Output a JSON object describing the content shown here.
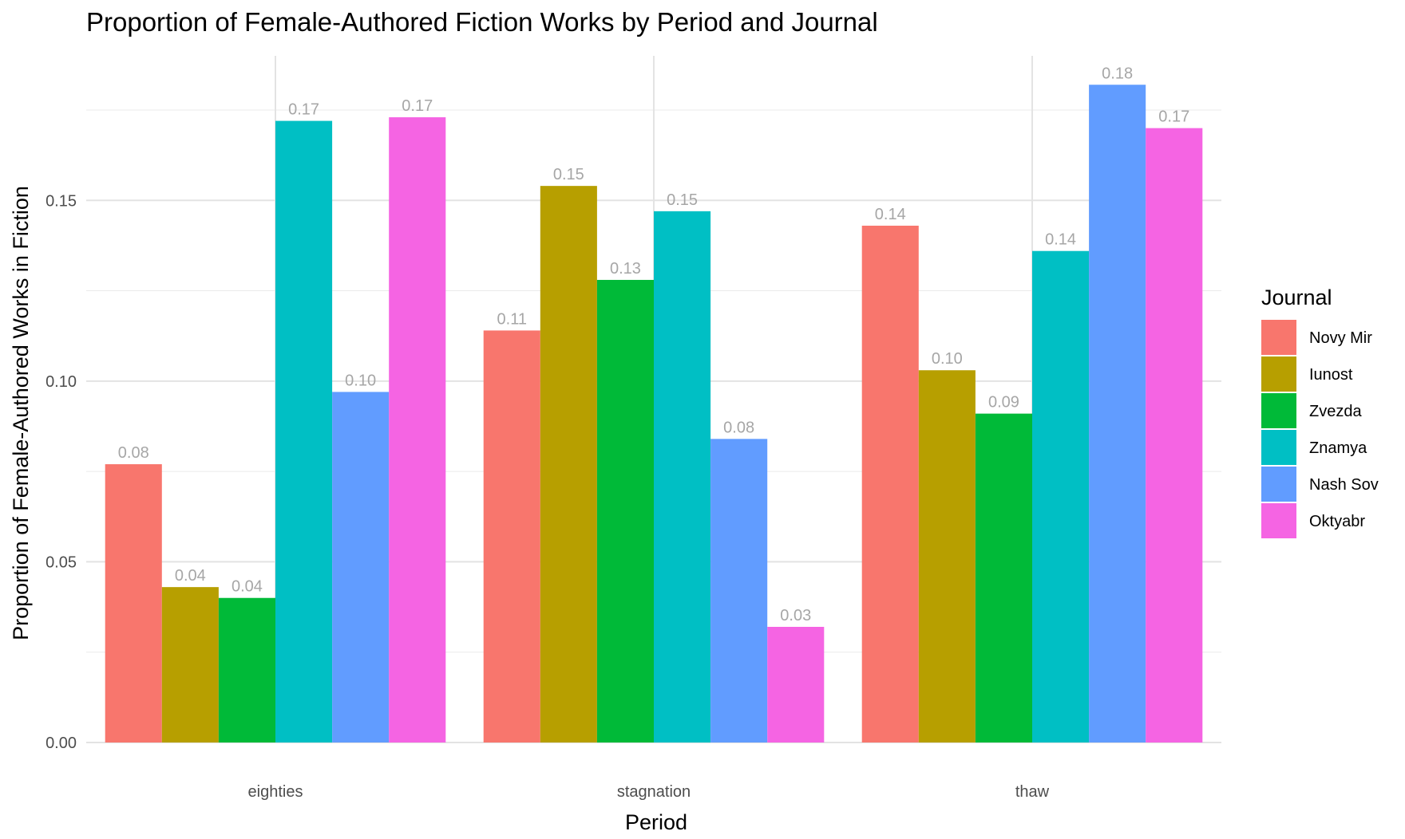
{
  "chart_data": {
    "type": "bar",
    "title": "Proportion of Female-Authored Fiction Works by Period and Journal",
    "xlabel": "Period",
    "ylabel": "Proportion of Female-Authored Works in Fiction",
    "ylim": [
      0,
      0.19
    ],
    "yticks": [
      "0.00",
      "0.05",
      "0.10",
      "0.15"
    ],
    "grid": true,
    "legend_title": "Journal",
    "legend_position": "right",
    "categories": [
      "eighties",
      "stagnation",
      "thaw"
    ],
    "series": [
      {
        "name": "Novy Mir",
        "color": "#F8766D",
        "values": [
          0.077,
          0.114,
          0.143
        ],
        "labels": [
          "0.08",
          "0.11",
          "0.14"
        ]
      },
      {
        "name": "Iunost",
        "color": "#B79F00",
        "values": [
          0.043,
          0.154,
          0.103
        ],
        "labels": [
          "0.04",
          "0.15",
          "0.10"
        ]
      },
      {
        "name": "Zvezda",
        "color": "#00BA38",
        "values": [
          0.04,
          0.128,
          0.091
        ],
        "labels": [
          "0.04",
          "0.13",
          "0.09"
        ]
      },
      {
        "name": "Znamya",
        "color": "#00BFC4",
        "values": [
          0.172,
          0.147,
          0.136
        ],
        "labels": [
          "0.17",
          "0.15",
          "0.14"
        ]
      },
      {
        "name": "Nash Sov",
        "color": "#619CFF",
        "values": [
          0.097,
          0.084,
          0.182
        ],
        "labels": [
          "0.10",
          "0.08",
          "0.18"
        ]
      },
      {
        "name": "Oktyabr",
        "color": "#F564E3",
        "values": [
          0.173,
          0.032,
          0.17
        ],
        "labels": [
          "0.17",
          "0.03",
          "0.17"
        ]
      }
    ]
  }
}
